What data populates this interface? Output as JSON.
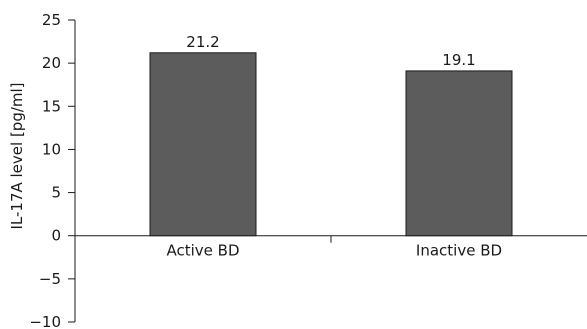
{
  "chart_data": {
    "type": "bar",
    "title": "",
    "xlabel": "",
    "ylabel": "IL-17A level [pg/ml]",
    "categories": [
      "Active BD",
      "Inactive BD"
    ],
    "values": [
      21.2,
      19.1
    ],
    "data_labels": [
      "21.2",
      "19.1"
    ],
    "ylim": [
      -10,
      25
    ],
    "yticks": [
      25,
      20,
      15,
      10,
      5,
      0,
      -5,
      -10
    ],
    "ytick_labels": [
      "25",
      "20",
      "15",
      "10",
      "5",
      "0",
      "−5",
      "−10"
    ],
    "grid": false,
    "legend": "none",
    "bar_color": "#5c5c5c",
    "bar_edge_color": "#1a1a1a"
  }
}
